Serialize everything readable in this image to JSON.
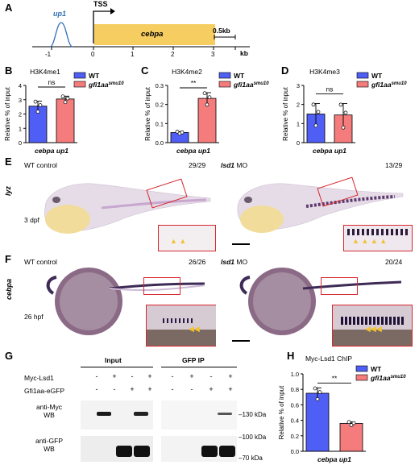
{
  "panels": {
    "A": {
      "letter": "A",
      "gene_up": "up1",
      "tss": "TSS",
      "gene": "cebpa",
      "scale": "0.5kb",
      "unit": "kb",
      "ticks": [
        "-1",
        "0",
        "1",
        "2",
        "3"
      ],
      "gene_color": "#f6cd61",
      "peak_color": "#2d6db5"
    },
    "B": {
      "letter": "B"
    },
    "C": {
      "letter": "C"
    },
    "D": {
      "letter": "D"
    },
    "E": {
      "letter": "E",
      "row_label": "lyz",
      "left_title": "WT control",
      "left_count": "29/29",
      "left_stage": "3 dpf",
      "right_title": "lsd1",
      "right_title_suffix": " MO",
      "right_count": "13/29"
    },
    "F": {
      "letter": "F",
      "row_label": "cebpa",
      "left_title": "WT control",
      "left_count": "26/26",
      "left_stage": "26 hpf",
      "right_title": "lsd1",
      "right_title_suffix": " MO",
      "right_count": "20/24"
    },
    "G": {
      "letter": "G",
      "input_label": "Input",
      "ip_label": "GFP IP",
      "row1": "Myc-Lsd1",
      "row2": "Gfi1aa-eGFP",
      "row1_signs": [
        "-",
        "+",
        "-",
        "+",
        "-",
        "+",
        "-",
        "+"
      ],
      "row2_signs": [
        "-",
        "-",
        "+",
        "+",
        "-",
        "-",
        "+",
        "+"
      ],
      "wb1_line1": "anti-Myc",
      "wb1_line2": "WB",
      "wb2_line1": "anti-GFP",
      "wb2_line2": "WB",
      "kda_130": "130 kDa",
      "kda_100": "100 kDa",
      "kda_70": "70 kDa"
    },
    "H": {
      "letter": "H"
    }
  },
  "legend": {
    "wt": "WT",
    "mut_base": "gfi1aa",
    "mut_sup": "smu10",
    "wt_color": "#4f5ef5",
    "mut_color": "#f47c7c"
  },
  "chart_data": [
    {
      "id": "B",
      "type": "bar",
      "title": "H3K4me1",
      "xlabel": "cebpa up1",
      "ylabel": "Relative % of input",
      "categories": [
        "WT",
        "gfi1aa smu10"
      ],
      "values": [
        2.55,
        3.05
      ],
      "errors": [
        0.35,
        0.2
      ],
      "ylim": [
        0,
        4
      ],
      "yticks": [
        "0",
        "1",
        "2",
        "3",
        "4"
      ],
      "significance": "ns"
    },
    {
      "id": "C",
      "type": "bar",
      "title": "H3K4me2",
      "xlabel": "cebpa up1",
      "ylabel": "Relative % of input",
      "categories": [
        "WT",
        "gfi1aa smu10"
      ],
      "values": [
        0.053,
        0.232
      ],
      "errors": [
        0.005,
        0.03
      ],
      "ylim": [
        0,
        0.3
      ],
      "yticks": [
        "0.0",
        "0.1",
        "0.2",
        "0.3"
      ],
      "significance": "**"
    },
    {
      "id": "D",
      "type": "bar",
      "title": "H3K4me3",
      "xlabel": "cebpa up1",
      "ylabel": "Relative % of input",
      "categories": [
        "WT",
        "gfi1aa smu10"
      ],
      "values": [
        1.5,
        1.45
      ],
      "errors": [
        0.55,
        0.6
      ],
      "ylim": [
        0,
        3
      ],
      "yticks": [
        "0",
        "1",
        "2",
        "3"
      ],
      "significance": "ns"
    },
    {
      "id": "H",
      "type": "bar",
      "title": "Myc-Lsd1 ChIP",
      "xlabel": "cebpa up1",
      "ylabel": "Relative % of input",
      "categories": [
        "WT",
        "gfi1aa smu10"
      ],
      "values": [
        0.75,
        0.36
      ],
      "errors": [
        0.07,
        0.02
      ],
      "ylim": [
        0,
        1.0
      ],
      "yticks": [
        "0.0",
        "0.2",
        "0.4",
        "0.6",
        "0.8",
        "1.0"
      ],
      "significance": "**"
    }
  ]
}
